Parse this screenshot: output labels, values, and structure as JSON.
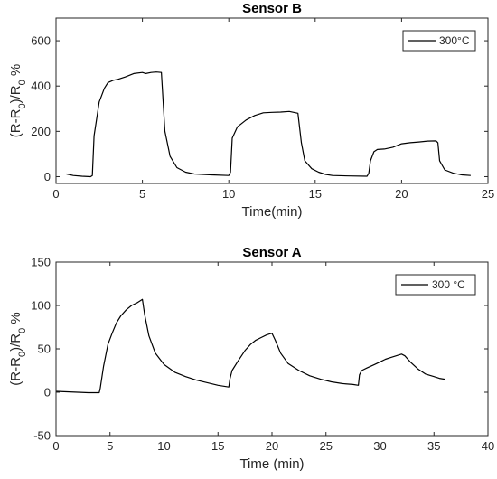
{
  "chart_data": [
    {
      "type": "line",
      "title": "Sensor B",
      "xlabel": "Time(min)",
      "ylabel": "(R-R0)/R0 %",
      "xlim": [
        0,
        25
      ],
      "ylim": [
        -30,
        700
      ],
      "xticks": [
        0,
        5,
        10,
        15,
        20,
        25
      ],
      "yticks": [
        0,
        200,
        400,
        600
      ],
      "grid": false,
      "legend_position": "top-right",
      "series": [
        {
          "name": "300°C",
          "color": "#000000",
          "x": [
            0.6,
            1.0,
            1.5,
            2.0,
            2.1,
            2.2,
            2.5,
            2.8,
            3.0,
            3.3,
            3.6,
            4.0,
            4.5,
            5.0,
            5.2,
            5.5,
            5.8,
            6.1,
            6.3,
            6.6,
            7.0,
            7.5,
            8.0,
            9.0,
            10.0,
            10.1,
            10.2,
            10.5,
            11.0,
            11.5,
            12.0,
            12.5,
            13.0,
            13.5,
            14.0,
            14.2,
            14.4,
            14.8,
            15.2,
            15.6,
            16.0,
            17.0,
            18.0,
            18.1,
            18.2,
            18.4,
            18.6,
            19.0,
            19.5,
            20.0,
            20.5,
            21.0,
            21.5,
            22.0,
            22.1,
            22.2,
            22.5,
            23.0,
            23.5,
            24.0
          ],
          "y": [
            12,
            5,
            2,
            0,
            5,
            180,
            330,
            390,
            415,
            425,
            430,
            440,
            455,
            460,
            455,
            460,
            462,
            460,
            200,
            90,
            40,
            20,
            12,
            8,
            5,
            20,
            170,
            220,
            250,
            270,
            282,
            284,
            285,
            288,
            280,
            150,
            70,
            35,
            20,
            10,
            5,
            3,
            2,
            15,
            70,
            110,
            120,
            122,
            130,
            145,
            150,
            153,
            157,
            158,
            150,
            70,
            30,
            15,
            8,
            5
          ]
        }
      ]
    },
    {
      "type": "line",
      "title": "Sensor A",
      "xlabel": "Time (min)",
      "ylabel": "(R-R0)/R0 %",
      "xlim": [
        0,
        40
      ],
      "ylim": [
        -50,
        150
      ],
      "xticks": [
        0,
        5,
        10,
        15,
        20,
        25,
        30,
        35,
        40
      ],
      "yticks": [
        -50,
        0,
        50,
        100,
        150
      ],
      "grid": false,
      "legend_position": "top-right",
      "series": [
        {
          "name": "300 °C",
          "color": "#000000",
          "x": [
            0,
            1,
            2,
            3,
            4,
            4.1,
            4.4,
            4.8,
            5.2,
            5.6,
            6.0,
            6.5,
            7.0,
            7.5,
            8.0,
            8.2,
            8.6,
            9.2,
            10.0,
            11.0,
            12.0,
            13.0,
            14.0,
            15.0,
            16.0,
            16.1,
            16.3,
            16.8,
            17.5,
            18.0,
            18.5,
            19.0,
            19.5,
            20.0,
            20.3,
            20.8,
            21.5,
            22.5,
            23.5,
            24.5,
            25.5,
            26.5,
            27.5,
            28.0,
            28.1,
            28.3,
            28.8,
            29.5,
            30.0,
            30.5,
            31.0,
            31.5,
            32.0,
            32.3,
            32.8,
            33.5,
            34.2,
            35.0,
            35.5,
            36.0
          ],
          "y": [
            1,
            0.5,
            0,
            -0.5,
            -0.5,
            5,
            30,
            55,
            68,
            80,
            88,
            95,
            100,
            103,
            107,
            90,
            65,
            45,
            32,
            23,
            18,
            14,
            11,
            8,
            6,
            15,
            25,
            35,
            48,
            55,
            60,
            63,
            66,
            68,
            60,
            45,
            33,
            25,
            19,
            15,
            12,
            10,
            9,
            8,
            20,
            25,
            28,
            32,
            35,
            38,
            40,
            42,
            44,
            42,
            35,
            27,
            21,
            18,
            16,
            15
          ]
        }
      ]
    }
  ]
}
